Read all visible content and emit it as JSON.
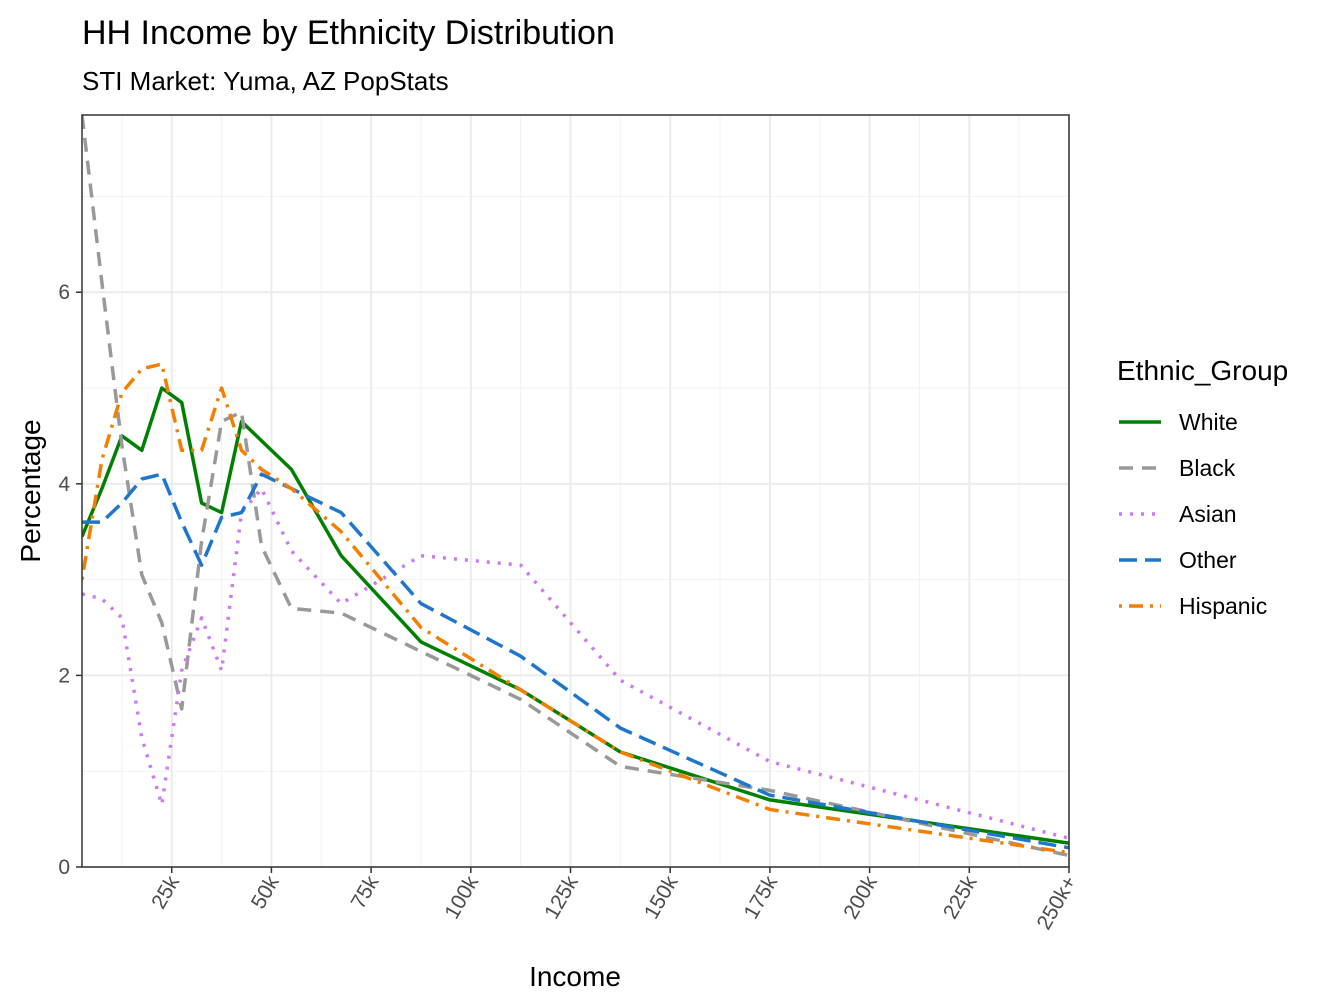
{
  "chart_data": {
    "type": "line",
    "title": "HH Income by Ethnicity Distribution",
    "subtitle": "STI Market: Yuma, AZ PopStats",
    "xlabel": "Income",
    "ylabel": "Percentage",
    "xlim": [
      2500,
      250000
    ],
    "ylim": [
      0,
      7.85
    ],
    "x_ticks": [
      {
        "value": 25000,
        "label": "25k"
      },
      {
        "value": 50000,
        "label": "50k"
      },
      {
        "value": 75000,
        "label": "75k"
      },
      {
        "value": 100000,
        "label": "100k"
      },
      {
        "value": 125000,
        "label": "125k"
      },
      {
        "value": 150000,
        "label": "150k"
      },
      {
        "value": 175000,
        "label": "175k"
      },
      {
        "value": 200000,
        "label": "200k"
      },
      {
        "value": 225000,
        "label": "225k"
      },
      {
        "value": 250000,
        "label": "250k+"
      }
    ],
    "y_ticks": [
      0,
      2,
      4,
      6
    ],
    "grid": true,
    "legend": {
      "title": "Ethnic_Group",
      "position": "right"
    },
    "x": [
      2500,
      7500,
      12500,
      17500,
      22500,
      27500,
      32500,
      37500,
      42500,
      47500,
      55000,
      67500,
      87500,
      112500,
      137500,
      175000,
      250000
    ],
    "series": [
      {
        "name": "White",
        "color": "#008000",
        "dash": "solid",
        "values": [
          3.45,
          3.95,
          4.5,
          4.35,
          5.0,
          4.85,
          3.8,
          3.7,
          4.65,
          4.45,
          4.15,
          3.25,
          2.35,
          1.85,
          1.2,
          0.7,
          0.25
        ]
      },
      {
        "name": "Black",
        "color": "#999999",
        "dash": "dash",
        "values": [
          7.85,
          6.1,
          4.4,
          3.05,
          2.55,
          1.65,
          3.4,
          4.65,
          4.75,
          3.35,
          2.7,
          2.65,
          2.25,
          1.75,
          1.05,
          0.8,
          0.12
        ]
      },
      {
        "name": "Asian",
        "color": "#cc79f2",
        "dash": "dot",
        "values": [
          2.85,
          2.8,
          2.6,
          1.35,
          0.65,
          2.05,
          2.6,
          2.05,
          3.7,
          3.95,
          3.3,
          2.75,
          3.25,
          3.15,
          1.95,
          1.1,
          0.3
        ]
      },
      {
        "name": "Other",
        "color": "#1f77cc",
        "dash": "longdash",
        "values": [
          3.6,
          3.6,
          3.8,
          4.05,
          4.1,
          3.6,
          3.15,
          3.65,
          3.7,
          4.1,
          3.95,
          3.7,
          2.75,
          2.2,
          1.45,
          0.75,
          0.2
        ]
      },
      {
        "name": "Hispanic",
        "color": "#f27f00",
        "dash": "dotdash",
        "values": [
          3.0,
          4.25,
          4.95,
          5.2,
          5.25,
          4.35,
          4.35,
          5.0,
          4.35,
          4.15,
          3.95,
          3.5,
          2.5,
          1.85,
          1.2,
          0.6,
          0.15
        ]
      }
    ]
  }
}
